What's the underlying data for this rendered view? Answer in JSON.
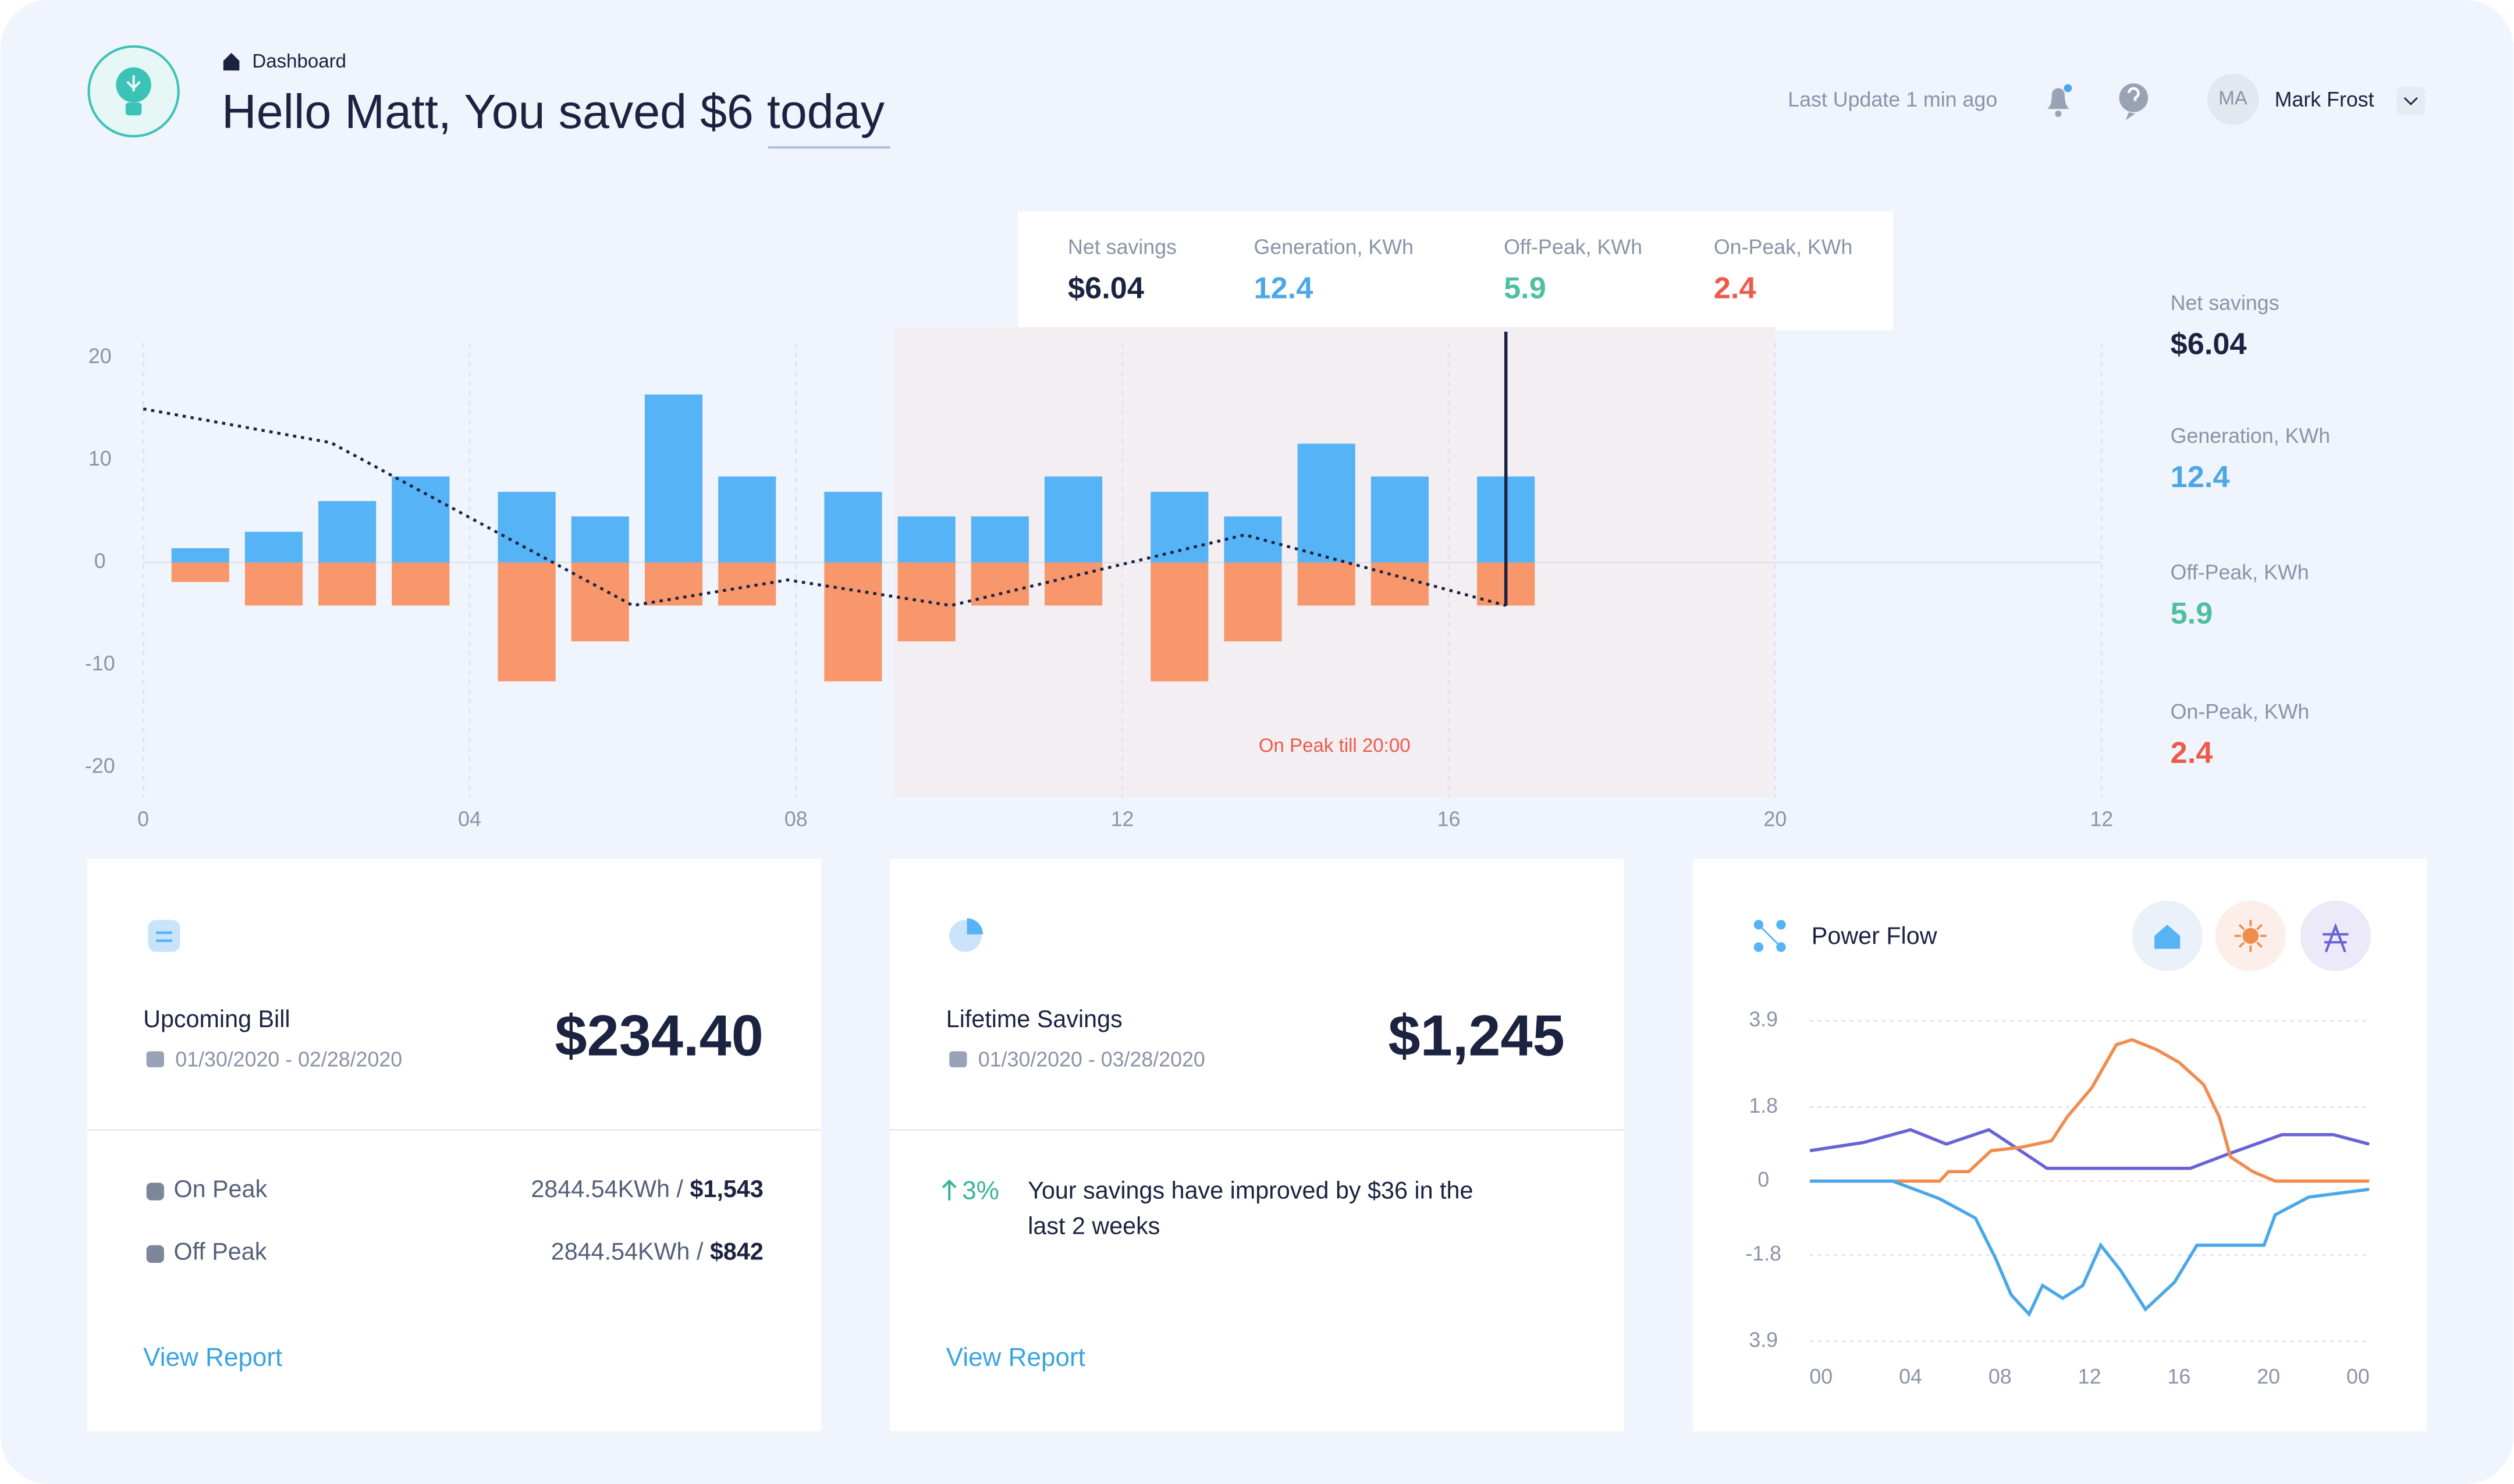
{
  "header": {
    "breadcrumb": "Dashboard",
    "title": "Hello Matt, You saved $6 today",
    "last_update": "Last Update 1 min ago",
    "user": {
      "initials": "MA",
      "name": "Mark Frost"
    }
  },
  "tooltip": {
    "items": [
      {
        "label": "Net savings",
        "value": "$6.04",
        "color": "#1b2340"
      },
      {
        "label": "Generation, KWh",
        "value": "12.4",
        "color": "#4aa8e8"
      },
      {
        "label": "Off-Peak, KWh",
        "value": "5.9",
        "color": "#4fbf9f"
      },
      {
        "label": "On-Peak, KWh",
        "value": "2.4",
        "color": "#ee5a4a"
      }
    ]
  },
  "side_stats": {
    "items": [
      {
        "label": "Net savings",
        "value": "$6.04",
        "color": "#1b2340"
      },
      {
        "label": "Generation, KWh",
        "value": "12.4",
        "color": "#4aa8e8"
      },
      {
        "label": "Off-Peak, KWh",
        "value": "5.9",
        "color": "#4fbf9f"
      },
      {
        "label": "On-Peak, KWh",
        "value": "2.4",
        "color": "#ee5a4a"
      }
    ]
  },
  "chart_data": [
    {
      "type": "bar",
      "xlim": [
        0,
        24
      ],
      "xticks": [
        0,
        {
          "value": 4,
          "label": "04"
        },
        {
          "value": 8,
          "label": "08"
        },
        12,
        16,
        20,
        {
          "value": 24,
          "label": "12"
        }
      ],
      "ylim": [
        -23,
        23
      ],
      "yticks": [
        -20,
        -10,
        0,
        10,
        20
      ],
      "grid": "x",
      "x": [
        0.7,
        1.6,
        2.5,
        3.4,
        4.7,
        5.6,
        6.5,
        7.4,
        8.7,
        9.6,
        10.5,
        11.4,
        12.7,
        13.6,
        14.5,
        15.4,
        16.7
      ],
      "series": [
        {
          "color": "#56b3f5",
          "values": [
            1.4,
            3,
            6,
            8.4,
            6.9,
            4.5,
            16.4,
            8.4,
            6.9,
            4.5,
            4.5,
            8.4,
            6.9,
            4.5,
            11.6,
            8.4,
            8.4
          ]
        },
        {
          "color": "#f7976b",
          "values": [
            -1.9,
            -4.2,
            -4.2,
            -4.2,
            -11.6,
            -7.7,
            -4.2,
            -4.2,
            -11.6,
            -7.7,
            -4.2,
            -4.2,
            -11.6,
            -7.7,
            -4.2,
            -4.2,
            -4.2
          ]
        },
        {
          "type": "line",
          "color": "#1b2340",
          "dashed": true,
          "x": [
            0,
            2.3,
            6,
            7.9,
            9.9,
            13.5,
            16.7
          ],
          "values": [
            15,
            11.7,
            -4.2,
            -1.7,
            -4.2,
            2.7,
            -4.2
          ]
        }
      ],
      "highlight": {
        "x": [
          9.2,
          20
        ],
        "color": "#f3eef1",
        "label": "On Peak till 20:00"
      },
      "cursor_x": 16.7
    },
    {
      "type": "line",
      "title": "Power Flow",
      "xlim": [
        -0.5,
        24.5
      ],
      "xticks": [
        {
          "value": 0,
          "label": "00"
        },
        {
          "value": 4,
          "label": "04"
        },
        {
          "value": 8,
          "label": "08"
        },
        12,
        16,
        20,
        {
          "value": 24,
          "label": "00"
        }
      ],
      "ylim": [
        -3.9,
        3.9
      ],
      "yticks": [
        3.9,
        1.8,
        0,
        -1.8,
        {
          "value": -3.9,
          "label": "3.9"
        }
      ],
      "grid": "y",
      "series": [
        {
          "color": "#6a63d6",
          "x": [
            -0.5,
            1.9,
            4,
            5.6,
            7.5,
            10.1,
            16.5,
            18.2,
            20.6,
            22.9,
            24.5
          ],
          "values": [
            0.74,
            0.94,
            1.25,
            0.9,
            1.25,
            0.31,
            0.31,
            0.66,
            1.13,
            1.13,
            0.9
          ]
        },
        {
          "color": "#f08c4e",
          "x": [
            -0.5,
            5.3,
            5.7,
            6.6,
            7.6,
            8.9,
            10.3,
            11,
            12.1,
            13.2,
            13.9,
            15,
            16,
            17.1,
            17.8,
            18.3,
            19.3,
            20.3,
            24.5
          ],
          "values": [
            0,
            0,
            0.23,
            0.23,
            0.74,
            0.82,
            0.98,
            1.56,
            2.27,
            3.32,
            3.44,
            3.2,
            2.89,
            2.35,
            1.56,
            0.59,
            0.23,
            0,
            0
          ]
        },
        {
          "color": "#4aa8e8",
          "x": [
            -0.5,
            3.2,
            5.3,
            6.9,
            7.8,
            8.5,
            9.3,
            9.9,
            10.8,
            11.7,
            12.5,
            13.4,
            14.5,
            15.8,
            16.8,
            19.8,
            20.3,
            21.8,
            24.5
          ],
          "values": [
            0,
            0,
            -0.43,
            -0.9,
            -1.88,
            -2.77,
            -3.24,
            -2.54,
            -2.85,
            -2.54,
            -1.56,
            -2.18,
            -3.12,
            -2.46,
            -1.56,
            -1.56,
            -0.82,
            -0.39,
            -0.2
          ]
        }
      ]
    }
  ],
  "cards": {
    "bill": {
      "title": "Upcoming Bill",
      "dates": "01/30/2020 - 02/28/2020",
      "amount": "$234.40",
      "rows": [
        {
          "label": "On Peak",
          "usage": "2844.54KWh / ",
          "cost": "$1,543"
        },
        {
          "label": "Off Peak",
          "usage": "2844.54KWh / ",
          "cost": "$842"
        }
      ],
      "link": "View Report"
    },
    "savings": {
      "title": "Lifetime Savings",
      "dates": "01/30/2020 - 03/28/2020",
      "amount": "$1,245",
      "change": "3%",
      "message": [
        "Your savings have improved by $36 in the",
        "last 2 weeks"
      ],
      "link": "View Report"
    }
  }
}
